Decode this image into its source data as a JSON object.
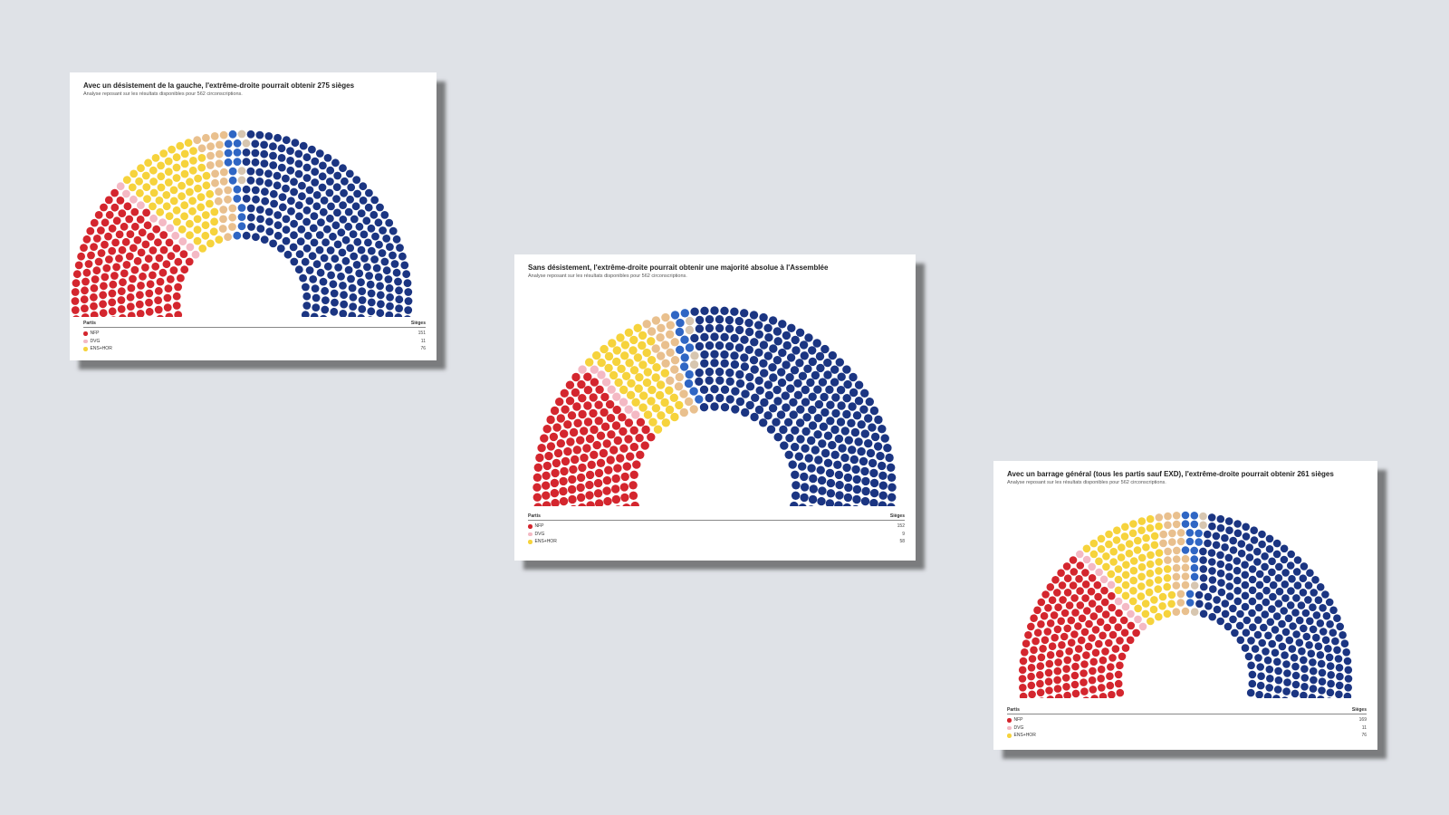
{
  "legend_header": {
    "party": "Partis",
    "seats": "Sièges"
  },
  "colors": {
    "NFP": "#d4262e",
    "DVG": "#f4b9c4",
    "ENS+HOR": "#f6d33c",
    "LR/DVD": "#e9c08e",
    "OTHER_BLUE": "#2f66c4",
    "SEP": "#d7c6b0",
    "RN": "#1b3582"
  },
  "charts": [
    {
      "title": "Avec un désistement de la gauche, l'extrême-droite pourrait obtenir 275 sièges",
      "subtitle": "Analyse reposant sur les résultats disponibles pour 562 circonscriptions.",
      "legend": [
        {
          "name": "NFP",
          "seats": "151",
          "color": "#d4262e"
        },
        {
          "name": "DVG",
          "seats": "11",
          "color": "#f4b9c4"
        },
        {
          "name": "ENS+HOR",
          "seats": "76",
          "color": "#f6d33c"
        }
      ]
    },
    {
      "title": "Sans désistement, l'extrême-droite pourrait obtenir une majorité absolue à l'Assemblée",
      "subtitle": "Analyse reposant sur les résultats disponibles pour 562 circonscriptions.",
      "legend": [
        {
          "name": "NFP",
          "seats": "152",
          "color": "#d4262e"
        },
        {
          "name": "DVG",
          "seats": "9",
          "color": "#f4b9c4"
        },
        {
          "name": "ENS+HOR",
          "seats": "58",
          "color": "#f6d33c"
        }
      ]
    },
    {
      "title": "Avec un barrage général (tous les partis sauf EXD), l'extrême-droite pourrait obtenir 261 sièges",
      "subtitle": "Analyse reposant sur les résultats disponibles pour 562 circonscriptions.",
      "legend": [
        {
          "name": "NFP",
          "seats": "169",
          "color": "#d4262e"
        },
        {
          "name": "DVG",
          "seats": "11",
          "color": "#f4b9c4"
        },
        {
          "name": "ENS+HOR",
          "seats": "76",
          "color": "#f6d33c"
        }
      ]
    }
  ],
  "chart_data": [
    {
      "type": "hemicycle",
      "title": "Avec un désistement de la gauche, l'extrême-droite pourrait obtenir 275 sièges",
      "series": [
        {
          "name": "NFP",
          "value": 151
        },
        {
          "name": "DVG",
          "value": 11
        },
        {
          "name": "ENS+HOR",
          "value": 76
        },
        {
          "value": 26
        },
        {
          "value": 15
        },
        {
          "value": 4
        },
        {
          "value": 275
        }
      ]
    },
    {
      "type": "hemicycle",
      "title": "Sans désistement, l'extrême-droite pourrait obtenir une majorité absolue à l'Assemblée",
      "series": [
        {
          "name": "NFP",
          "value": 152
        },
        {
          "name": "DVG",
          "value": 9
        },
        {
          "name": "ENS+HOR",
          "value": 58
        },
        {
          "value": 23
        },
        {
          "value": 13
        },
        {
          "value": 4
        },
        {
          "value": 303
        }
      ]
    },
    {
      "type": "hemicycle",
      "title": "Avec un barrage général (tous les partis sauf EXD), l'extrême-droite pourrait obtenir 261 sièges",
      "series": [
        {
          "name": "NFP",
          "value": 169
        },
        {
          "name": "DVG",
          "value": 11
        },
        {
          "name": "ENS+HOR",
          "value": 76
        },
        {
          "value": 26
        },
        {
          "value": 15
        },
        {
          "value": 4
        },
        {
          "value": 261
        }
      ]
    }
  ]
}
